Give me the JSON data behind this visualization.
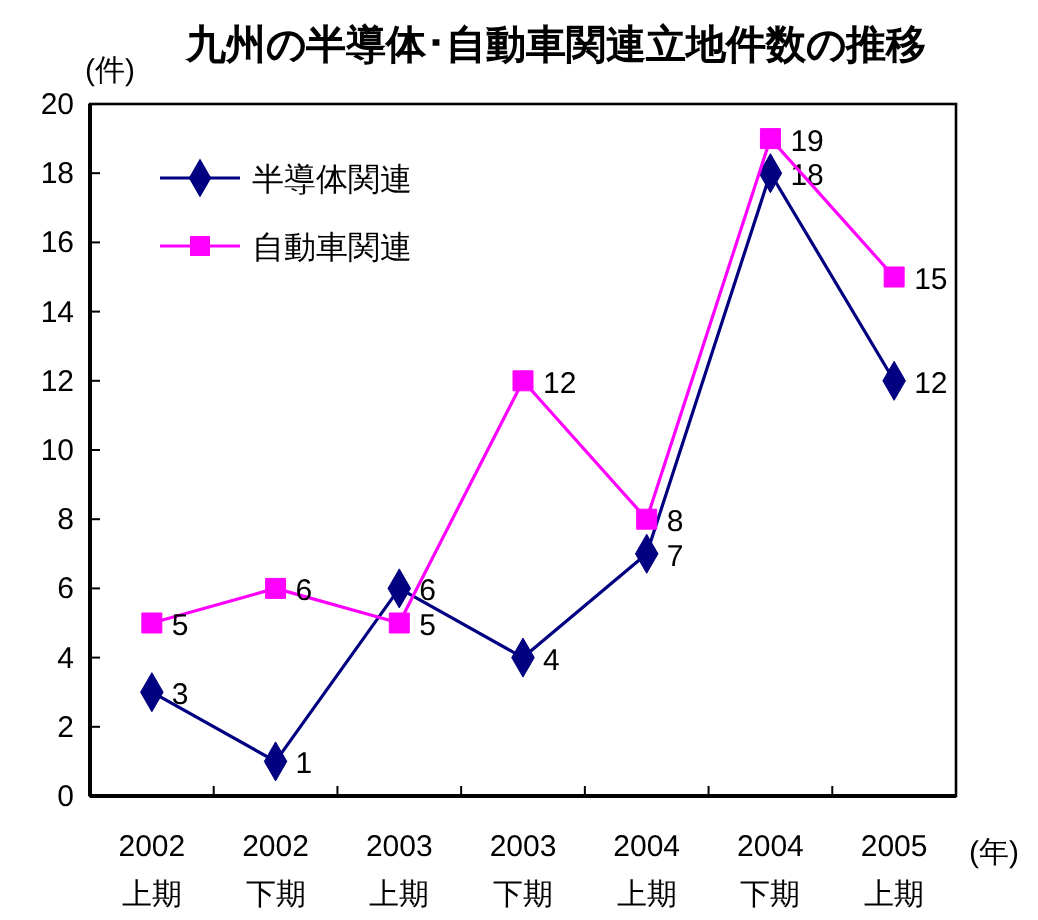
{
  "chart_data": {
    "type": "line",
    "title": "九州の半導体･自動車関連立地件数の推移",
    "ylabel": "(件)",
    "xlabel": "(年)",
    "categories": [
      "2002\n上期",
      "2002\n下期",
      "2003\n上期",
      "2003\n下期",
      "2004\n上期",
      "2004\n下期",
      "2005\n上期"
    ],
    "series": [
      {
        "name": "半導体関連",
        "color": "#000080",
        "marker": "diamond",
        "values": [
          3,
          1,
          6,
          4,
          7,
          18,
          12
        ]
      },
      {
        "name": "自動車関連",
        "color": "#ff00ff",
        "marker": "square",
        "values": [
          5,
          6,
          5,
          12,
          8,
          19,
          15
        ]
      }
    ],
    "ylim": [
      0,
      20
    ],
    "yticks": [
      0,
      2,
      4,
      6,
      8,
      10,
      12,
      14,
      16,
      18,
      20
    ],
    "legend": "top left",
    "data_labels": true
  }
}
